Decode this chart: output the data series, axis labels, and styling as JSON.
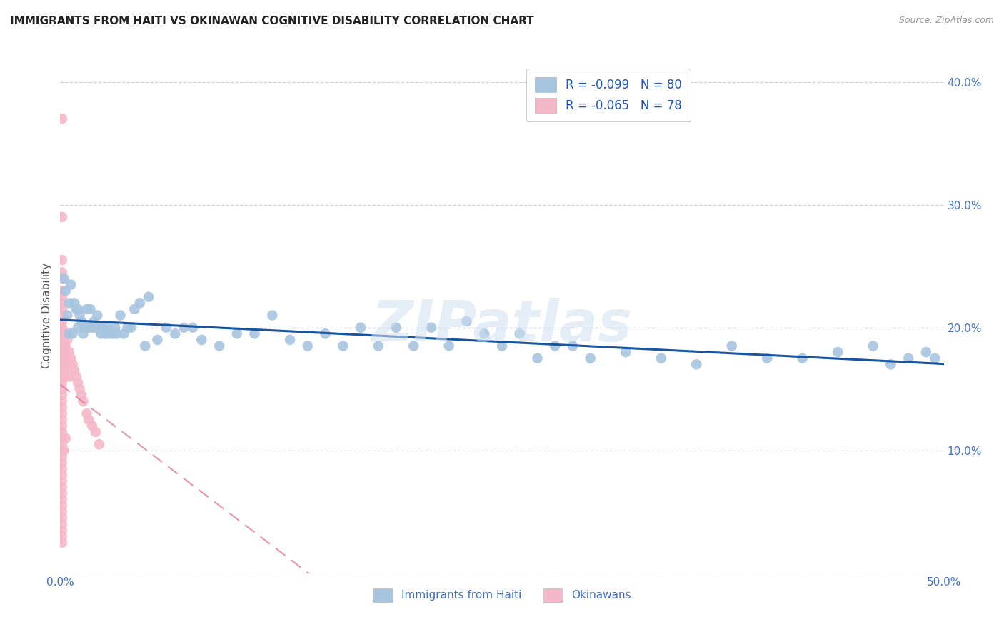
{
  "title": "IMMIGRANTS FROM HAITI VS OKINAWAN COGNITIVE DISABILITY CORRELATION CHART",
  "source": "Source: ZipAtlas.com",
  "ylabel": "Cognitive Disability",
  "xlim": [
    0.0,
    0.5
  ],
  "ylim": [
    0.0,
    0.42
  ],
  "haiti_color": "#a8c5e0",
  "okinawan_color": "#f5b8c8",
  "haiti_line_color": "#1855a0",
  "okinawan_line_color": "#e07090",
  "legend_r_haiti": "R = -0.099",
  "legend_n_haiti": "N = 80",
  "legend_r_okinawan": "R = -0.065",
  "legend_n_okinawan": "N = 78",
  "legend_label_haiti": "Immigrants from Haiti",
  "legend_label_okinawan": "Okinawans",
  "watermark": "ZIPatlas",
  "haiti_x": [
    0.002,
    0.003,
    0.004,
    0.005,
    0.005,
    0.006,
    0.007,
    0.008,
    0.009,
    0.01,
    0.01,
    0.011,
    0.012,
    0.013,
    0.014,
    0.015,
    0.016,
    0.017,
    0.018,
    0.019,
    0.02,
    0.021,
    0.022,
    0.023,
    0.024,
    0.025,
    0.026,
    0.027,
    0.028,
    0.03,
    0.031,
    0.032,
    0.034,
    0.036,
    0.038,
    0.04,
    0.042,
    0.045,
    0.048,
    0.05,
    0.055,
    0.06,
    0.065,
    0.07,
    0.075,
    0.08,
    0.09,
    0.1,
    0.11,
    0.12,
    0.13,
    0.14,
    0.15,
    0.16,
    0.17,
    0.18,
    0.19,
    0.2,
    0.21,
    0.22,
    0.23,
    0.24,
    0.25,
    0.26,
    0.27,
    0.28,
    0.29,
    0.3,
    0.32,
    0.34,
    0.36,
    0.38,
    0.4,
    0.42,
    0.44,
    0.46,
    0.47,
    0.48,
    0.49,
    0.495
  ],
  "haiti_y": [
    0.24,
    0.23,
    0.21,
    0.22,
    0.195,
    0.235,
    0.195,
    0.22,
    0.215,
    0.215,
    0.2,
    0.21,
    0.205,
    0.195,
    0.2,
    0.215,
    0.2,
    0.215,
    0.2,
    0.205,
    0.2,
    0.21,
    0.2,
    0.195,
    0.2,
    0.195,
    0.195,
    0.2,
    0.195,
    0.195,
    0.2,
    0.195,
    0.21,
    0.195,
    0.2,
    0.2,
    0.215,
    0.22,
    0.185,
    0.225,
    0.19,
    0.2,
    0.195,
    0.2,
    0.2,
    0.19,
    0.185,
    0.195,
    0.195,
    0.21,
    0.19,
    0.185,
    0.195,
    0.185,
    0.2,
    0.185,
    0.2,
    0.185,
    0.2,
    0.185,
    0.205,
    0.195,
    0.185,
    0.195,
    0.175,
    0.185,
    0.185,
    0.175,
    0.18,
    0.175,
    0.17,
    0.185,
    0.175,
    0.175,
    0.18,
    0.185,
    0.17,
    0.175,
    0.18,
    0.175
  ],
  "okinawan_x": [
    0.001,
    0.001,
    0.001,
    0.001,
    0.001,
    0.001,
    0.001,
    0.001,
    0.001,
    0.001,
    0.001,
    0.001,
    0.001,
    0.001,
    0.001,
    0.001,
    0.001,
    0.001,
    0.001,
    0.001,
    0.001,
    0.001,
    0.001,
    0.001,
    0.001,
    0.001,
    0.001,
    0.001,
    0.001,
    0.001,
    0.001,
    0.001,
    0.001,
    0.001,
    0.001,
    0.001,
    0.001,
    0.001,
    0.001,
    0.001,
    0.001,
    0.001,
    0.001,
    0.001,
    0.001,
    0.001,
    0.001,
    0.001,
    0.001,
    0.001,
    0.002,
    0.002,
    0.002,
    0.002,
    0.002,
    0.002,
    0.002,
    0.002,
    0.003,
    0.003,
    0.003,
    0.004,
    0.004,
    0.005,
    0.005,
    0.006,
    0.007,
    0.008,
    0.009,
    0.01,
    0.011,
    0.012,
    0.013,
    0.015,
    0.016,
    0.018,
    0.02,
    0.022
  ],
  "okinawan_y": [
    0.37,
    0.29,
    0.255,
    0.245,
    0.24,
    0.23,
    0.225,
    0.22,
    0.215,
    0.21,
    0.205,
    0.2,
    0.2,
    0.195,
    0.195,
    0.19,
    0.185,
    0.185,
    0.18,
    0.175,
    0.17,
    0.165,
    0.16,
    0.155,
    0.15,
    0.145,
    0.14,
    0.135,
    0.13,
    0.125,
    0.12,
    0.115,
    0.11,
    0.105,
    0.1,
    0.095,
    0.09,
    0.085,
    0.08,
    0.075,
    0.07,
    0.065,
    0.06,
    0.055,
    0.05,
    0.045,
    0.04,
    0.035,
    0.03,
    0.025,
    0.195,
    0.185,
    0.18,
    0.175,
    0.17,
    0.165,
    0.16,
    0.1,
    0.185,
    0.175,
    0.11,
    0.19,
    0.17,
    0.18,
    0.16,
    0.175,
    0.17,
    0.165,
    0.16,
    0.155,
    0.15,
    0.145,
    0.14,
    0.13,
    0.125,
    0.12,
    0.115,
    0.105
  ]
}
